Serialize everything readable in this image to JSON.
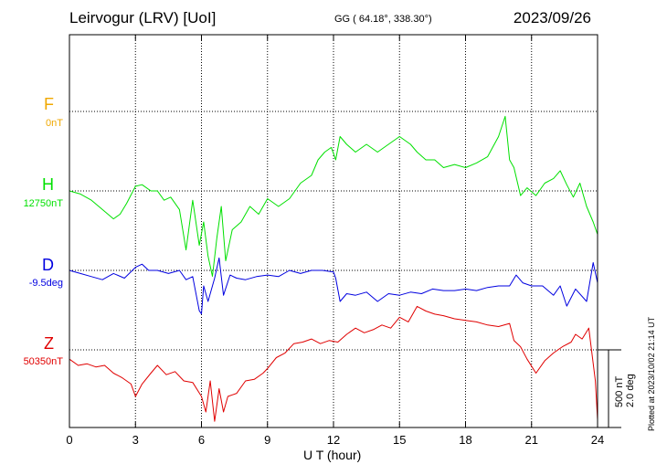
{
  "header": {
    "station": "Leirvogur (LRV)  [UoI]",
    "coords": "GG ( 64.18°, 338.30°)",
    "date": "2023/09/26"
  },
  "components": [
    {
      "label": "F",
      "baseline": "0nT",
      "color": "#f0a800"
    },
    {
      "label": "H",
      "baseline": "12750nT",
      "color": "#00e000"
    },
    {
      "label": "D",
      "baseline": "-9.5deg",
      "color": "#0000e0"
    },
    {
      "label": "Z",
      "baseline": "50350nT",
      "color": "#e00000"
    }
  ],
  "scale": {
    "line1": "500 nT",
    "line2": "2.0 deg"
  },
  "plotted": "Plotted at 2023/10/02 21:14 UT",
  "chart_data": {
    "type": "line",
    "xlabel": "U T (hour)",
    "xlim": [
      0,
      24
    ],
    "xticks": [
      "0",
      "3",
      "6",
      "9",
      "12",
      "15",
      "18",
      "21",
      "24"
    ],
    "series": [
      {
        "name": "H",
        "unit": "nT offset from 12750nT",
        "x": [
          0,
          0.5,
          1,
          1.5,
          2,
          2.3,
          2.6,
          3,
          3.3,
          3.7,
          4,
          4.3,
          4.6,
          5,
          5.3,
          5.6,
          5.9,
          6.1,
          6.3,
          6.5,
          6.7,
          6.9,
          7.1,
          7.4,
          7.8,
          8.2,
          8.6,
          9,
          9.5,
          10,
          10.5,
          11,
          11.3,
          11.6,
          11.9,
          12.1,
          12.3,
          12.6,
          13,
          13.5,
          14,
          14.5,
          15,
          15.5,
          15.8,
          16.2,
          16.6,
          17,
          17.5,
          18,
          18.5,
          19,
          19.5,
          19.8,
          20,
          20.2,
          20.5,
          20.8,
          21.2,
          21.6,
          22,
          22.3,
          22.6,
          22.9,
          23.2,
          23.5,
          23.8,
          24
        ],
        "y": [
          0,
          -20,
          -60,
          -120,
          -180,
          -150,
          -80,
          30,
          40,
          0,
          0,
          -60,
          -40,
          -120,
          -380,
          -60,
          -350,
          -200,
          -420,
          -550,
          -300,
          -100,
          -450,
          -250,
          -200,
          -100,
          -150,
          -50,
          -100,
          -50,
          50,
          100,
          200,
          250,
          280,
          200,
          350,
          300,
          250,
          300,
          250,
          300,
          350,
          300,
          250,
          200,
          200,
          150,
          170,
          150,
          180,
          220,
          350,
          480,
          200,
          150,
          -30,
          20,
          -30,
          50,
          80,
          130,
          40,
          -40,
          50,
          -100,
          -200,
          -280
        ]
      },
      {
        "name": "D",
        "unit": "nT offset from -9.5deg",
        "x": [
          0,
          0.5,
          1,
          1.5,
          2,
          2.5,
          3,
          3.3,
          3.6,
          4,
          4.5,
          5,
          5.3,
          5.6,
          5.9,
          6,
          6.1,
          6.3,
          6.6,
          6.8,
          7,
          7.3,
          7.6,
          8,
          8.5,
          9,
          9.5,
          10,
          10.5,
          11,
          11.5,
          12,
          12.1,
          12.3,
          12.6,
          13,
          13.5,
          14,
          14.5,
          15,
          15.5,
          16,
          16.5,
          17,
          17.5,
          18,
          18.5,
          19,
          19.5,
          20,
          20.3,
          20.6,
          21,
          21.5,
          22,
          22.3,
          22.6,
          23,
          23.5,
          23.8,
          24
        ],
        "y": [
          0,
          -20,
          -40,
          -60,
          -20,
          -50,
          20,
          40,
          0,
          0,
          -20,
          0,
          -60,
          -40,
          -260,
          -280,
          -100,
          -200,
          -50,
          80,
          -160,
          -30,
          -50,
          -60,
          -40,
          -30,
          -40,
          0,
          -20,
          0,
          0,
          -10,
          -50,
          -200,
          -150,
          -160,
          -140,
          -200,
          -150,
          -160,
          -140,
          -150,
          -120,
          -130,
          -130,
          -120,
          -130,
          -110,
          -100,
          -100,
          -30,
          -80,
          -100,
          -100,
          -160,
          -100,
          -230,
          -120,
          -200,
          50,
          -80
        ]
      },
      {
        "name": "Z",
        "unit": "nT offset from 50350nT",
        "x": [
          0,
          0.4,
          0.8,
          1.2,
          1.6,
          2,
          2.4,
          2.8,
          3,
          3.3,
          3.7,
          4,
          4.4,
          4.8,
          5.2,
          5.6,
          6,
          6.2,
          6.4,
          6.6,
          6.8,
          7,
          7.2,
          7.6,
          8,
          8.4,
          8.8,
          9,
          9.4,
          9.8,
          10.2,
          10.6,
          11,
          11.4,
          11.8,
          12.2,
          12.6,
          13,
          13.4,
          13.8,
          14.2,
          14.6,
          15,
          15.4,
          15.8,
          16.2,
          16.6,
          17,
          17.5,
          18,
          18.5,
          19,
          19.5,
          20,
          20.2,
          20.5,
          20.8,
          21.2,
          21.6,
          22,
          22.4,
          22.8,
          23,
          23.3,
          23.6,
          23.9,
          24
        ],
        "y": [
          -60,
          -100,
          -90,
          -110,
          -100,
          -150,
          -180,
          -220,
          -300,
          -220,
          -150,
          -100,
          -160,
          -140,
          -200,
          -210,
          -300,
          -400,
          -200,
          -460,
          -250,
          -400,
          -300,
          -280,
          -200,
          -190,
          -150,
          -120,
          -50,
          -20,
          40,
          50,
          70,
          40,
          60,
          50,
          100,
          140,
          110,
          130,
          160,
          140,
          210,
          180,
          280,
          250,
          230,
          220,
          200,
          190,
          180,
          160,
          150,
          170,
          60,
          20,
          -60,
          -150,
          -70,
          -20,
          20,
          50,
          100,
          70,
          140,
          -200,
          -450
        ]
      }
    ]
  }
}
